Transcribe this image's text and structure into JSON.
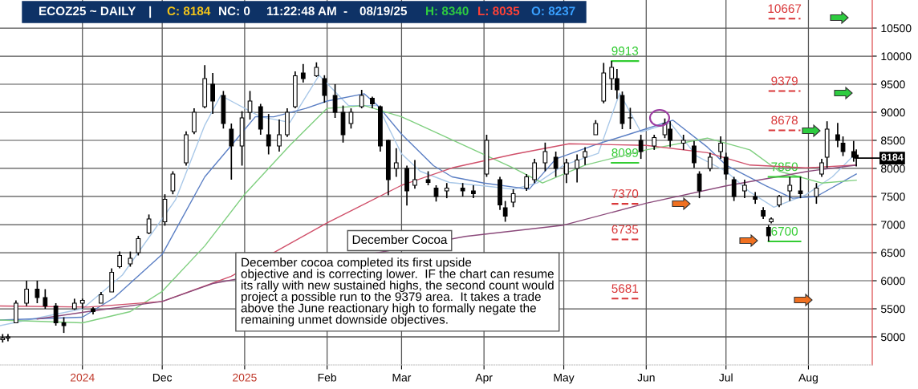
{
  "chart_data": {
    "type": "candlestick",
    "title": "ECOZ25 ~ DAILY",
    "x": [
      "2024-10-02",
      "2024-10-04",
      "2024-10-07",
      "2024-10-11",
      "2024-10-15",
      "2024-10-18",
      "2024-10-22",
      "2024-10-25",
      "2024-10-29",
      "2024-11-01",
      "2024-11-05",
      "2024-11-08",
      "2024-11-12",
      "2024-11-15",
      "2024-11-19",
      "2024-11-22",
      "2024-11-26",
      "2024-12-02",
      "2024-12-05",
      "2024-12-10",
      "2024-12-13",
      "2024-12-17",
      "2024-12-20",
      "2024-12-24",
      "2024-12-27",
      "2024-12-31",
      "2025-01-03",
      "2025-01-07",
      "2025-01-10",
      "2025-01-14",
      "2025-01-17",
      "2025-01-20",
      "2025-01-23",
      "2025-01-28",
      "2025-01-31",
      "2025-02-04",
      "2025-02-07",
      "2025-02-10",
      "2025-02-14",
      "2025-02-18",
      "2025-02-21",
      "2025-02-24",
      "2025-02-27",
      "2025-03-03",
      "2025-03-06",
      "2025-03-11",
      "2025-03-14",
      "2025-03-18",
      "2025-03-24",
      "2025-03-28",
      "2025-04-02",
      "2025-04-07",
      "2025-04-09",
      "2025-04-12",
      "2025-04-17",
      "2025-04-20",
      "2025-04-24",
      "2025-04-28",
      "2025-05-02",
      "2025-05-06",
      "2025-05-09",
      "2025-05-13",
      "2025-05-16",
      "2025-05-19",
      "2025-05-21",
      "2025-05-23",
      "2025-05-26",
      "2025-05-30",
      "2025-06-04",
      "2025-06-08",
      "2025-06-10",
      "2025-06-15",
      "2025-06-19",
      "2025-06-21",
      "2025-06-25",
      "2025-06-29",
      "2025-07-01",
      "2025-07-04",
      "2025-07-08",
      "2025-07-12",
      "2025-07-15",
      "2025-07-17",
      "2025-07-18",
      "2025-07-21",
      "2025-07-25",
      "2025-07-29",
      "2025-08-04",
      "2025-08-06",
      "2025-08-08",
      "2025-08-12",
      "2025-08-14",
      "2025-08-18",
      "2025-08-19"
    ],
    "ohlc": [
      [
        4950,
        5050,
        4900,
        4980
      ],
      [
        4980,
        5050,
        4920,
        5000
      ],
      [
        5250,
        5650,
        5250,
        5600
      ],
      [
        5600,
        6000,
        5550,
        5850
      ],
      [
        5850,
        6000,
        5600,
        5700
      ],
      [
        5700,
        5850,
        5500,
        5550
      ],
      [
        5550,
        5600,
        5200,
        5250
      ],
      [
        5250,
        5350,
        5070,
        5200
      ],
      [
        5500,
        5680,
        5480,
        5600
      ],
      [
        5600,
        5680,
        5500,
        5650
      ],
      [
        5500,
        5530,
        5400,
        5450
      ],
      [
        5600,
        5800,
        5600,
        5750
      ],
      [
        5800,
        6220,
        5800,
        6150
      ],
      [
        6250,
        6520,
        6220,
        6450
      ],
      [
        6300,
        6520,
        6250,
        6400
      ],
      [
        6500,
        6800,
        6450,
        6750
      ],
      [
        6850,
        7180,
        6830,
        7100
      ],
      [
        7050,
        7540,
        6980,
        7450
      ],
      [
        7600,
        7950,
        7540,
        7900
      ],
      [
        8100,
        8660,
        8050,
        8600
      ],
      [
        8650,
        9070,
        8610,
        9000
      ],
      [
        9100,
        9840,
        9070,
        9600
      ],
      [
        9500,
        9700,
        8970,
        9200
      ],
      [
        9300,
        9380,
        8710,
        8800
      ],
      [
        8700,
        8800,
        7800,
        8400
      ],
      [
        8400,
        9020,
        8050,
        8900
      ],
      [
        9000,
        9380,
        8870,
        9200
      ],
      [
        9100,
        9150,
        8600,
        8700
      ],
      [
        8600,
        8970,
        8250,
        8400
      ],
      [
        8400,
        8870,
        8300,
        8600
      ],
      [
        8600,
        9070,
        8560,
        9000
      ],
      [
        9100,
        9730,
        9070,
        9650
      ],
      [
        9700,
        9860,
        9530,
        9600
      ],
      [
        9650,
        9890,
        9630,
        9800
      ],
      [
        9600,
        9660,
        9170,
        9300
      ],
      [
        9300,
        9500,
        8900,
        9000
      ],
      [
        9000,
        9120,
        8460,
        8600
      ],
      [
        8800,
        9070,
        8710,
        9000
      ],
      [
        9100,
        9400,
        9070,
        9300
      ],
      [
        9250,
        9280,
        9070,
        9150
      ],
      [
        9100,
        9120,
        8300,
        8400
      ],
      [
        8500,
        8510,
        7520,
        7800
      ],
      [
        8000,
        8360,
        7850,
        8100
      ],
      [
        8000,
        8050,
        7340,
        7600
      ],
      [
        7700,
        8150,
        7640,
        7800
      ],
      [
        7800,
        7950,
        7700,
        7750
      ],
      [
        7650,
        7700,
        7410,
        7500
      ],
      [
        7600,
        7740,
        7470,
        7650
      ],
      [
        7650,
        7740,
        7500,
        7600
      ],
      [
        7600,
        7700,
        7470,
        7550
      ],
      [
        7900,
        8600,
        7850,
        8500
      ],
      [
        7800,
        7850,
        7260,
        7350
      ],
      [
        7300,
        7420,
        7050,
        7150
      ],
      [
        7400,
        7630,
        7310,
        7550
      ],
      [
        7650,
        7900,
        7600,
        7850
      ],
      [
        7800,
        8170,
        7740,
        8100
      ],
      [
        8100,
        8460,
        7950,
        8300
      ],
      [
        8200,
        8300,
        7850,
        8000
      ],
      [
        7900,
        8170,
        7740,
        8100
      ],
      [
        8000,
        8250,
        7750,
        8150
      ],
      [
        8200,
        8380,
        8060,
        8300
      ],
      [
        8600,
        8860,
        8600,
        8800
      ],
      [
        9200,
        9880,
        9160,
        9700
      ],
      [
        9600,
        9913,
        9400,
        9800
      ],
      [
        9600,
        9770,
        9240,
        9400
      ],
      [
        9300,
        9370,
        8700,
        8800
      ],
      [
        8900,
        9080,
        8700,
        8900
      ],
      [
        8500,
        8600,
        8170,
        8300
      ],
      [
        8400,
        8600,
        8330,
        8550
      ],
      [
        8600,
        8890,
        8540,
        8800
      ],
      [
        8700,
        8840,
        8380,
        8500
      ],
      [
        8450,
        8600,
        8330,
        8500
      ],
      [
        8400,
        8490,
        8010,
        8100
      ],
      [
        7900,
        7950,
        7470,
        7600
      ],
      [
        8000,
        8280,
        7950,
        8200
      ],
      [
        8300,
        8570,
        8170,
        8450
      ],
      [
        8200,
        8280,
        7800,
        7900
      ],
      [
        7800,
        7850,
        7420,
        7500
      ],
      [
        7600,
        7800,
        7470,
        7700
      ],
      [
        7500,
        7580,
        7370,
        7450
      ],
      [
        7250,
        7310,
        7100,
        7150
      ],
      [
        6950,
        6990,
        6700,
        6800
      ],
      [
        7050,
        7130,
        7020,
        7100
      ],
      [
        7350,
        7530,
        7310,
        7500
      ],
      [
        7600,
        7850,
        7420,
        7700
      ],
      [
        7600,
        7850,
        7470,
        7550
      ],
      [
        7500,
        7740,
        7370,
        7650
      ],
      [
        7900,
        8170,
        7850,
        8100
      ],
      [
        8200,
        8840,
        8010,
        8700
      ],
      [
        8600,
        8810,
        8380,
        8500
      ],
      [
        8450,
        8570,
        8220,
        8300
      ],
      [
        8300,
        8490,
        8120,
        8200
      ],
      [
        8237,
        8340,
        8035,
        8184
      ]
    ],
    "series": [
      {
        "type": "line",
        "color": "#a9c8e8",
        "x": [
          "2024-10-01",
          "2024-11-01",
          "2024-11-16",
          "2024-12-06",
          "2024-12-17",
          "2024-12-23",
          "2025-01-07",
          "2025-01-18",
          "2025-01-29",
          "2025-02-09",
          "2025-02-20",
          "2025-03-01",
          "2025-03-08",
          "2025-03-19",
          "2025-04-01",
          "2025-04-12",
          "2025-04-21",
          "2025-05-01",
          "2025-05-14",
          "2025-05-22",
          "2025-05-30",
          "2025-06-10",
          "2025-06-20",
          "2025-07-01",
          "2025-07-10",
          "2025-07-19",
          "2025-07-31",
          "2025-08-10",
          "2025-08-19"
        ],
        "values": [
          5200,
          5500,
          6100,
          7440,
          8770,
          9300,
          8920,
          8820,
          9660,
          9120,
          9120,
          8260,
          7950,
          7750,
          7690,
          7630,
          7740,
          8060,
          8270,
          9340,
          8650,
          8810,
          8220,
          7950,
          7580,
          7310,
          7530,
          7850,
          8280
        ]
      },
      {
        "type": "line",
        "color": "#5b7fc4",
        "x": [
          "2024-10-01",
          "2024-11-01",
          "2024-11-13",
          "2024-12-01",
          "2024-12-17",
          "2024-12-27",
          "2025-01-05",
          "2025-01-12",
          "2025-01-24",
          "2025-02-01",
          "2025-02-15",
          "2025-02-20",
          "2025-03-01",
          "2025-03-13",
          "2025-03-20",
          "2025-04-01",
          "2025-04-18",
          "2025-04-28",
          "2025-05-14",
          "2025-05-25",
          "2025-06-11",
          "2025-06-24",
          "2025-07-01",
          "2025-07-16",
          "2025-07-26",
          "2025-08-04",
          "2025-08-19"
        ],
        "values": [
          5300,
          5350,
          5700,
          6470,
          7850,
          8410,
          8920,
          8920,
          9070,
          9200,
          9330,
          9120,
          8610,
          8050,
          7850,
          7740,
          7630,
          8170,
          8440,
          8600,
          8860,
          8380,
          8060,
          7690,
          7470,
          7500,
          7900
        ]
      },
      {
        "type": "line",
        "color": "#7fcf7f",
        "x": [
          "2024-10-01",
          "2024-11-01",
          "2024-11-19",
          "2024-12-01",
          "2024-12-17",
          "2025-01-01",
          "2025-01-18",
          "2025-02-01",
          "2025-02-15",
          "2025-03-01",
          "2025-03-20",
          "2025-04-12",
          "2025-04-23",
          "2025-05-09",
          "2025-06-01",
          "2025-06-24",
          "2025-07-10",
          "2025-07-21",
          "2025-08-06",
          "2025-08-19"
        ],
        "values": [
          5300,
          5250,
          5450,
          5810,
          6620,
          7540,
          8410,
          9070,
          9120,
          8920,
          8510,
          8010,
          7740,
          8060,
          8330,
          8540,
          8330,
          7950,
          7740,
          7790
        ]
      },
      {
        "type": "line",
        "color": "#d0506a",
        "x": [
          "2024-10-01",
          "2024-11-03",
          "2024-12-01",
          "2024-12-27",
          "2025-02-01",
          "2025-03-01",
          "2025-03-20",
          "2025-04-12",
          "2025-05-03",
          "2025-06-01",
          "2025-06-24",
          "2025-07-10",
          "2025-07-31",
          "2025-08-19"
        ],
        "values": [
          5550,
          5530,
          5630,
          6080,
          7030,
          7700,
          8010,
          8250,
          8440,
          8410,
          8280,
          8060,
          8010,
          8060
        ]
      },
      {
        "type": "line",
        "color": "#8b4a7b",
        "x": [
          "2024-10-15",
          "2024-11-03",
          "2024-12-01",
          "2024-12-20",
          "2025-03-25",
          "2025-05-01",
          "2025-06-01",
          "2025-07-01",
          "2025-08-01",
          "2025-08-19"
        ],
        "values": [
          5320,
          5450,
          5630,
          5950,
          6790,
          6990,
          7380,
          7690,
          7950,
          8060
        ]
      },
      {
        "type": "line",
        "color": "#33cc33",
        "line_style": "solid",
        "x": [
          "2025-05-19",
          "2025-05-29"
        ],
        "values": [
          9913,
          9913
        ]
      },
      {
        "type": "line",
        "color": "#33cc33",
        "line_style": "solid",
        "x": [
          "2025-05-19",
          "2025-05-29"
        ],
        "values": [
          8099,
          8099
        ]
      },
      {
        "type": "line",
        "color": "#d9383a",
        "line_style": "dashed",
        "x": [
          "2025-05-19",
          "2025-05-29"
        ],
        "values": [
          7370,
          7370
        ]
      },
      {
        "type": "line",
        "color": "#d9383a",
        "line_style": "dashed",
        "x": [
          "2025-05-19",
          "2025-05-29"
        ],
        "values": [
          6735,
          6735
        ]
      },
      {
        "type": "line",
        "color": "#d9383a",
        "line_style": "dashed",
        "x": [
          "2025-05-19",
          "2025-05-29"
        ],
        "values": [
          5681,
          5681
        ]
      },
      {
        "type": "line",
        "color": "#d9383a",
        "line_style": "dashed",
        "x": [
          "2025-07-17",
          "2025-07-29"
        ],
        "values": [
          10667,
          10667
        ]
      },
      {
        "type": "line",
        "color": "#d9383a",
        "line_style": "dashed",
        "x": [
          "2025-07-17",
          "2025-07-29"
        ],
        "values": [
          9379,
          9379
        ]
      },
      {
        "type": "line",
        "color": "#d9383a",
        "line_style": "dashed",
        "x": [
          "2025-07-17",
          "2025-07-29"
        ],
        "values": [
          8678,
          8678
        ]
      },
      {
        "type": "line",
        "color": "#33cc33",
        "line_style": "solid",
        "x": [
          "2025-07-17",
          "2025-07-29"
        ],
        "values": [
          7850,
          7850
        ]
      },
      {
        "type": "line",
        "color": "#33cc33",
        "line_style": "solid",
        "x": [
          "2025-07-17",
          "2025-07-29"
        ],
        "values": [
          6700,
          6700
        ]
      }
    ],
    "annotations": [
      "|",
      "C: 8184",
      "NC: 0",
      "11:22:48 AM",
      "-",
      "08/19/25",
      "H: 8340",
      "L: 8035",
      "O: 8237",
      "December Cocoa",
      "December cocoa completed its first upside\nobjective and is correcting lower.  IF the chart can resume\nits rally with new sustained highs, the second count would\nproject a possible run to the 9379 area.  It takes a trade\nabove the June reactionary high to formally negate the\nremaining unmet downside objectives.",
      {
        "text": "9913",
        "x": "2025-05-24",
        "y": 9913
      },
      {
        "text": "8099",
        "x": "2025-05-24",
        "y": 8099
      },
      {
        "text": "7370",
        "x": "2025-05-24",
        "y": 7370
      },
      {
        "text": "6735",
        "x": "2025-05-24",
        "y": 6735
      },
      {
        "text": "5681",
        "x": "2025-05-24",
        "y": 5681
      },
      {
        "text": "10667",
        "x": "2025-07-23",
        "y": 10667
      },
      {
        "text": "9379",
        "x": "2025-07-23",
        "y": 9379
      },
      {
        "text": "8678",
        "x": "2025-07-23",
        "y": 8678
      },
      {
        "text": "7850",
        "x": "2025-07-23",
        "y": 7850
      },
      {
        "text": "6700",
        "x": "2025-07-23",
        "y": 6700
      },
      {
        "text": "8184",
        "x": "2025-08-19",
        "y": 8184
      }
    ],
    "xlim": [
      "2024-10-01",
      "2025-08-25"
    ],
    "xticks": [
      {
        "value": "2024-11-01",
        "label": "2024"
      },
      {
        "value": "2024-12-01",
        "label": "Dec"
      },
      {
        "value": "2025-01-01",
        "label": "2025"
      },
      {
        "value": "2025-02-01",
        "label": "Feb"
      },
      {
        "value": "2025-03-01",
        "label": "Mar"
      },
      {
        "value": "2025-04-01",
        "label": "Apr"
      },
      {
        "value": "2025-05-01",
        "label": "May"
      },
      {
        "value": "2025-06-01",
        "label": "Jun"
      },
      {
        "value": "2025-07-01",
        "label": "Jul"
      },
      {
        "value": "2025-08-01",
        "label": "Aug"
      }
    ],
    "ylim": [
      4500,
      11000
    ],
    "yticks": [
      5000,
      5500,
      6000,
      6500,
      7000,
      7500,
      8000,
      8500,
      9000,
      9500,
      10000,
      10500
    ],
    "grid": true
  }
}
